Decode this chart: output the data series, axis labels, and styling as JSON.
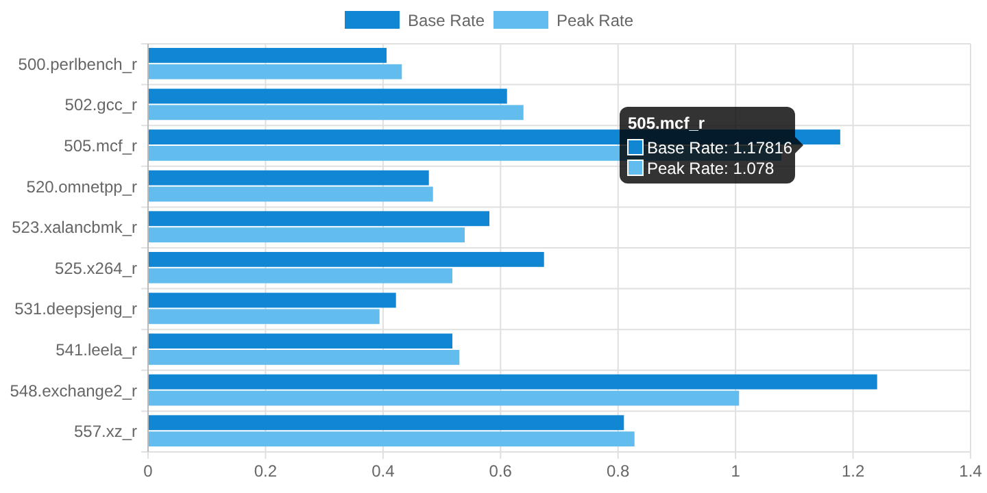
{
  "chart_data": {
    "type": "bar",
    "orientation": "horizontal",
    "categories": [
      "500.perlbench_r",
      "502.gcc_r",
      "505.mcf_r",
      "520.omnetpp_r",
      "523.xalancbmk_r",
      "525.x264_r",
      "531.deepsjeng_r",
      "541.leela_r",
      "548.exchange2_r",
      "557.xz_r"
    ],
    "series": [
      {
        "name": "Base Rate",
        "color": "#1187d4",
        "values": [
          0.406,
          0.611,
          1.17816,
          0.478,
          0.581,
          0.674,
          0.422,
          0.518,
          1.241,
          0.81
        ]
      },
      {
        "name": "Peak Rate",
        "color": "#62bdee",
        "values": [
          0.432,
          0.639,
          1.078,
          0.485,
          0.539,
          0.518,
          0.394,
          0.53,
          1.006,
          0.828
        ]
      }
    ],
    "xlim": [
      0,
      1.4
    ],
    "xticks": [
      0,
      0.2,
      0.4,
      0.6,
      0.8,
      1,
      1.2,
      1.4
    ],
    "grid": true,
    "legend": "top",
    "annotations": [
      "505.mcf_r",
      "Base Rate: 1.17816",
      "Peak Rate: 1.078"
    ]
  }
}
